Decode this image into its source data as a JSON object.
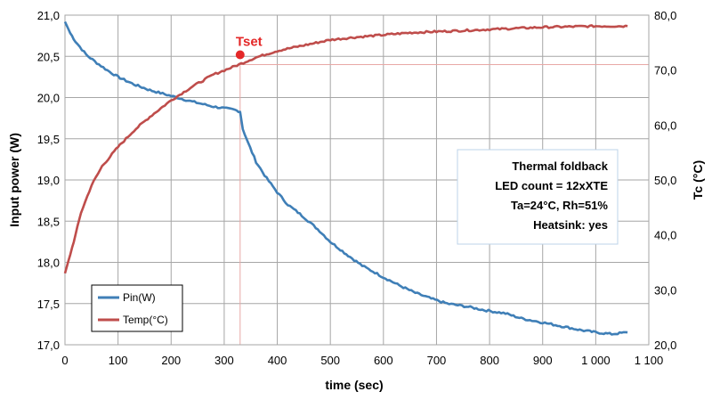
{
  "colors": {
    "pin": "#3f7fb7",
    "temp": "#bf4d4b",
    "grid": "#a6a6a6",
    "tset": "#e42828",
    "box_bg": "#ffffff",
    "box_border": "#bdd3e8"
  },
  "chart_data": {
    "type": "line",
    "xlabel": "time (sec)",
    "ylabel": "Input power (W)",
    "y2label": "Tc (°C)",
    "xlim": [
      0,
      1100
    ],
    "ylim": [
      17.0,
      21.0
    ],
    "y2lim": [
      20,
      80
    ],
    "x_ticks": [
      "0",
      "100",
      "200",
      "300",
      "400",
      "500",
      "600",
      "700",
      "800",
      "900",
      "1 000",
      "1 100"
    ],
    "y_ticks": [
      "17,0",
      "17,5",
      "18,0",
      "18,5",
      "19,0",
      "19,5",
      "20,0",
      "20,5",
      "21,0"
    ],
    "y2_ticks": [
      "20,0",
      "30,0",
      "40,0",
      "50,0",
      "60,0",
      "70,0",
      "80,0"
    ],
    "grid": true,
    "legend_position": "bottom-left",
    "series": [
      {
        "name": "Pin(W)",
        "axis": "left",
        "x": [
          0,
          10,
          20,
          40,
          60,
          80,
          100,
          130,
          160,
          200,
          240,
          280,
          320,
          330,
          335,
          345,
          360,
          380,
          400,
          420,
          450,
          480,
          500,
          530,
          560,
          600,
          630,
          660,
          690,
          720,
          740,
          760,
          790,
          810,
          830,
          860,
          900,
          940,
          970,
          1000,
          1030,
          1060
        ],
        "y": [
          20.92,
          20.78,
          20.68,
          20.52,
          20.42,
          20.33,
          20.25,
          20.16,
          20.09,
          20.02,
          19.95,
          19.89,
          19.85,
          19.83,
          19.62,
          19.45,
          19.22,
          19.02,
          18.85,
          18.7,
          18.55,
          18.38,
          18.25,
          18.1,
          17.96,
          17.82,
          17.72,
          17.63,
          17.56,
          17.5,
          17.48,
          17.46,
          17.42,
          17.4,
          17.38,
          17.32,
          17.27,
          17.22,
          17.18,
          17.15,
          17.13,
          17.15
        ]
      },
      {
        "name": "Temp(°C)",
        "axis": "right",
        "x": [
          0,
          10,
          20,
          30,
          50,
          70,
          100,
          130,
          160,
          200,
          240,
          280,
          320,
          340,
          360,
          400,
          450,
          500,
          550,
          600,
          650,
          700,
          750,
          800,
          850,
          900,
          950,
          1000,
          1060
        ],
        "y": [
          33,
          36.5,
          40,
          44,
          49,
          52.5,
          56,
          59,
          61.5,
          64.5,
          67,
          69.2,
          70.7,
          71.5,
          72.3,
          73.5,
          74.5,
          75.5,
          76,
          76.4,
          76.8,
          77,
          77.2,
          77.4,
          77.6,
          77.8,
          77.9,
          78,
          78
        ]
      }
    ],
    "annotations": {
      "tset_label": "Tset",
      "tset_x": 330,
      "tset_temp": 71,
      "info_lines": [
        "Thermal foldback",
        "LED count = 12xXTE",
        "Ta=24°C, Rh=51%",
        "Heatsink: yes"
      ]
    }
  }
}
